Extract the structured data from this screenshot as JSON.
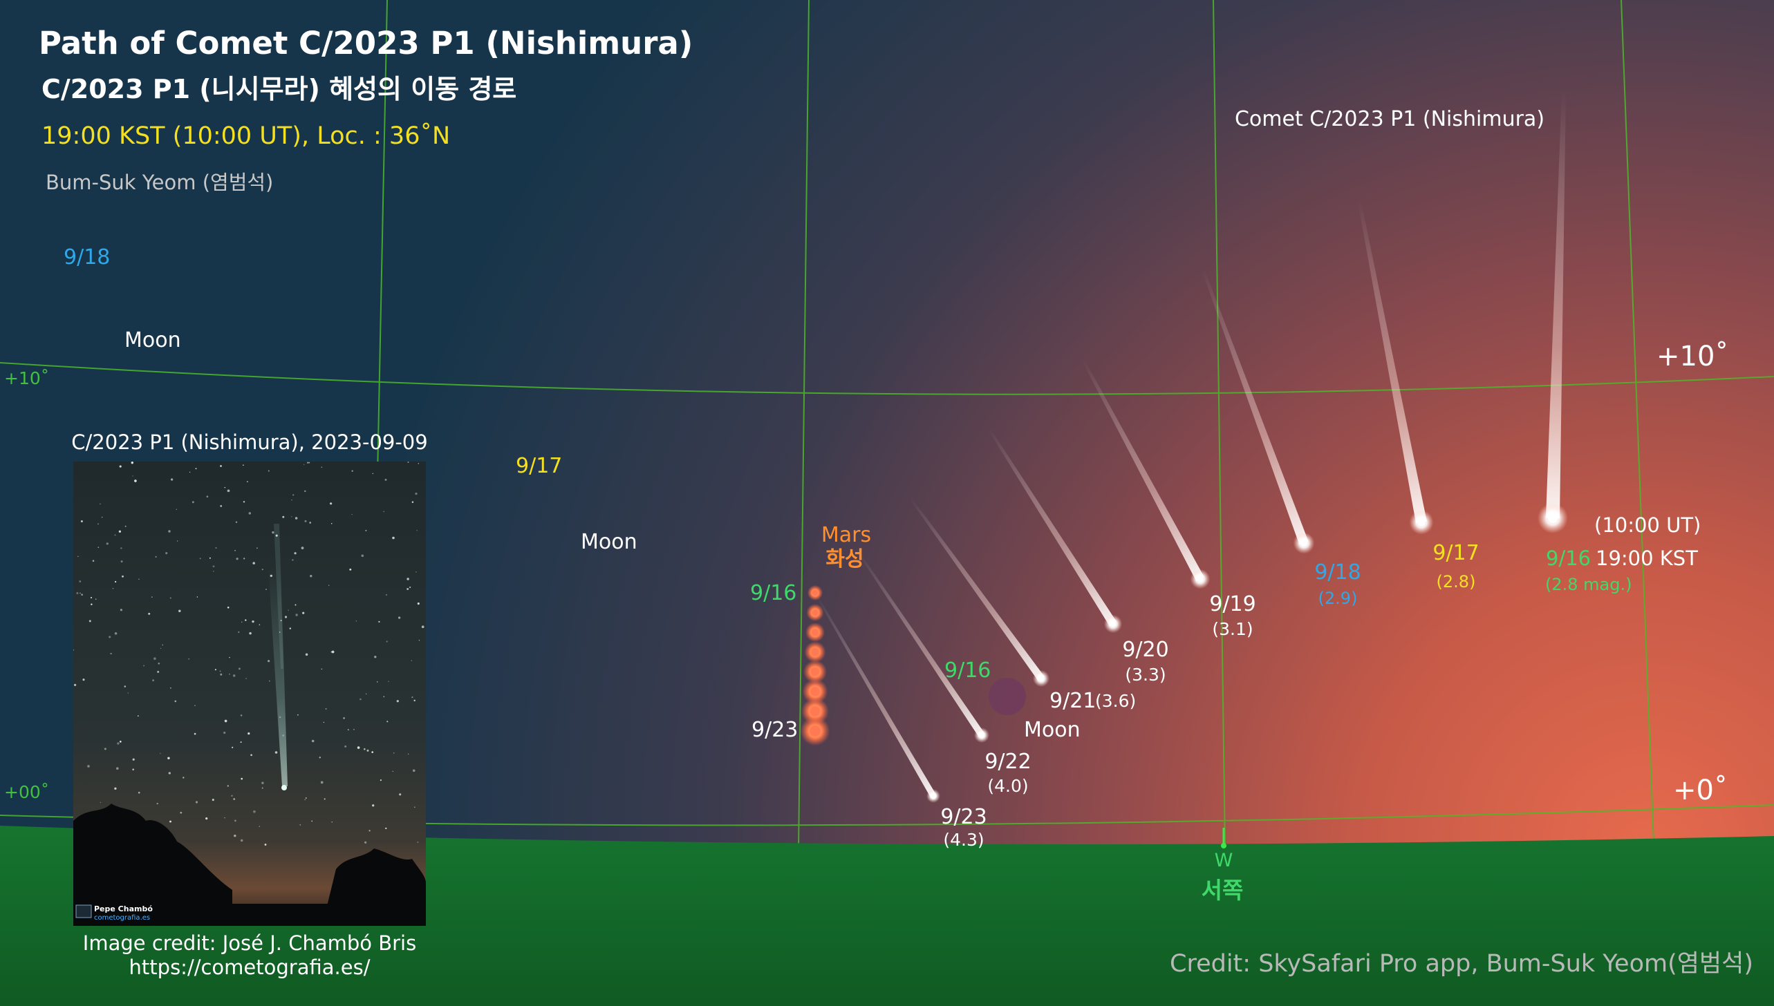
{
  "title": {
    "en": "Path of Comet C/2023 P1 (Nishimura)",
    "ko": "C/2023 P1 (니시무라) 혜성의 이동 경로",
    "time_location": "19:00 KST (10:00 UT), Loc. : 36˚N",
    "author": "Bum-Suk Yeom (염범석)"
  },
  "comet_header": "Comet C/2023 P1 (Nishimura)",
  "altitude_labels": {
    "plus10": "+10˚",
    "zero": "+0˚",
    "grid_plus10": "+10˚",
    "grid_zero": "+00˚"
  },
  "direction": {
    "code": "W",
    "korean": "서쪽"
  },
  "moon_positions": [
    {
      "date": "9/18",
      "label": "Moon"
    },
    {
      "date": "9/17",
      "label": "Moon"
    },
    {
      "date": "9/16",
      "label": "Moon"
    }
  ],
  "mars": {
    "name": "Mars",
    "name_ko": "화성",
    "start_date": "9/16",
    "end_date": "9/23",
    "dot_count": 8
  },
  "comet_positions": [
    {
      "date": "9/16",
      "mag": "(2.8 mag.)",
      "time": "19:00 KST",
      "ut": "(10:00 UT)"
    },
    {
      "date": "9/17",
      "mag": "(2.8)"
    },
    {
      "date": "9/18",
      "mag": "(2.9)"
    },
    {
      "date": "9/19",
      "mag": "(3.1)"
    },
    {
      "date": "9/20",
      "mag": "(3.3)"
    },
    {
      "date": "9/21",
      "mag": "(3.6)"
    },
    {
      "date": "9/22",
      "mag": "(4.0)"
    },
    {
      "date": "9/23",
      "mag": "(4.3)"
    }
  ],
  "inset_photo": {
    "caption": "C/2023 P1 (Nishimura), 2023-09-09",
    "watermark_name": "Pepe Chambó",
    "watermark_site": "cometografia.es",
    "credit_line1": "Image credit: José J. Chambó Bris",
    "credit_line2": "https://cometografia.es/"
  },
  "credit": "Credit: SkySafari Pro app, Bum-Suk Yeom(염범석)",
  "colors": {
    "sky_top": "#16354a",
    "horizon_glow": "#e0654a",
    "ground": "#14702c",
    "grid": "#4cb82a",
    "label_yellow": "#f4e021",
    "label_blue": "#2ea8e8",
    "label_green": "#3fd96a",
    "mars_orange": "#ff8f2e"
  }
}
